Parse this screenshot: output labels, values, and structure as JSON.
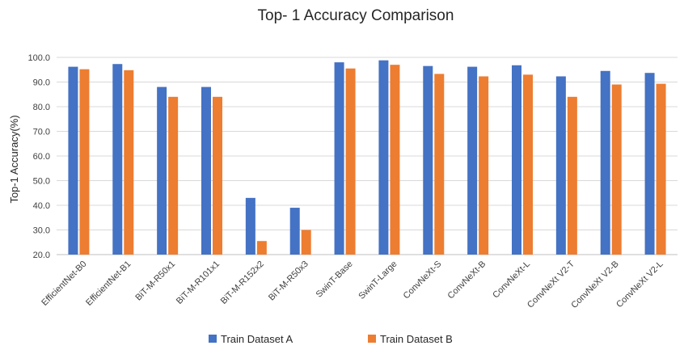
{
  "chart_data": {
    "type": "bar",
    "title": "Top- 1 Accuracy Comparison",
    "xlabel": "",
    "ylabel": "Top-1 Accuracy(%)",
    "ylim": [
      20,
      100
    ],
    "yticks": [
      "20.0",
      "30.0",
      "40.0",
      "50.0",
      "60.0",
      "70.0",
      "80.0",
      "90.0",
      "100.0"
    ],
    "grid": true,
    "legend_position": "bottom",
    "categories": [
      "EfficientNet-B0",
      "EfficientNet-B1",
      "BiT-M-R50x1",
      "BiT-M-R101x1",
      "BiT-M-R152x2",
      "BiT-M-R50x3",
      "SwinT-Base",
      "SwinT-Large",
      "ConvNeXt-S",
      "ConvNeXt-B",
      "ConvNeXt-L",
      "ConvNeXt V2-T",
      "ConvNeXt V2-B",
      "ConvNeXt V2-L"
    ],
    "series": [
      {
        "name": "Train Dataset A",
        "color": "#4472C4",
        "values": [
          96.2,
          97.3,
          88.0,
          88.0,
          43.0,
          39.0,
          98.0,
          98.8,
          96.5,
          96.2,
          96.8,
          92.3,
          94.5,
          93.7
        ]
      },
      {
        "name": "Train Dataset B",
        "color": "#ED7D31",
        "values": [
          95.2,
          94.8,
          84.0,
          84.0,
          25.5,
          30.0,
          95.5,
          97.0,
          93.3,
          92.3,
          93.0,
          84.0,
          89.0,
          89.3
        ]
      }
    ]
  }
}
